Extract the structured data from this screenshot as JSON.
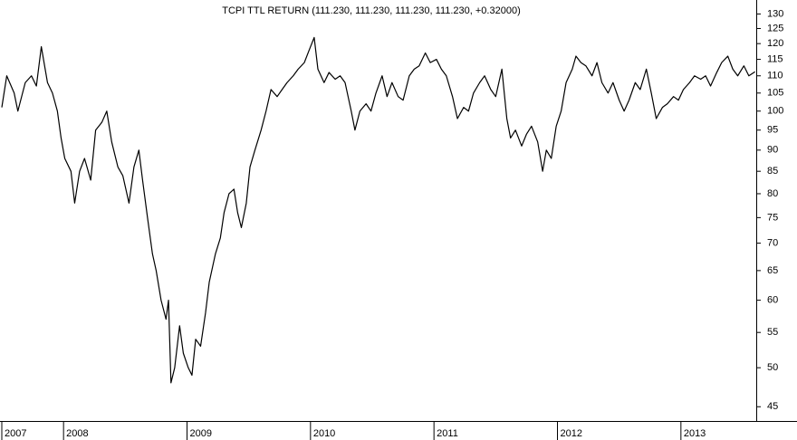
{
  "chart_data": {
    "type": "line",
    "title": "TCPI TTL RETURN (111.230, 111.230, 111.230, 111.230, +0.32000)",
    "x": [
      2007.5,
      2007.54,
      2007.6,
      2007.63,
      2007.69,
      2007.74,
      2007.78,
      2007.82,
      2007.87,
      2007.91,
      2007.95,
      2007.98,
      2008.01,
      2008.06,
      2008.09,
      2008.13,
      2008.17,
      2008.22,
      2008.26,
      2008.31,
      2008.35,
      2008.39,
      2008.44,
      2008.48,
      2008.53,
      2008.57,
      2008.61,
      2008.64,
      2008.68,
      2008.72,
      2008.75,
      2008.79,
      2008.83,
      2008.85,
      2008.87,
      2008.9,
      2008.94,
      2008.97,
      2009.01,
      2009.04,
      2009.07,
      2009.11,
      2009.15,
      2009.18,
      2009.23,
      2009.27,
      2009.3,
      2009.34,
      2009.38,
      2009.41,
      2009.44,
      2009.48,
      2009.51,
      2009.55,
      2009.6,
      2009.64,
      2009.68,
      2009.73,
      2009.77,
      2009.81,
      2009.86,
      2009.9,
      2009.95,
      2009.99,
      2010.03,
      2010.06,
      2010.11,
      2010.15,
      2010.2,
      2010.24,
      2010.28,
      2010.33,
      2010.36,
      2010.4,
      2010.45,
      2010.49,
      2010.53,
      2010.58,
      2010.62,
      2010.66,
      2010.71,
      2010.75,
      2010.8,
      2010.84,
      2010.88,
      2010.93,
      2010.97,
      2011.02,
      2011.06,
      2011.1,
      2011.15,
      2011.19,
      2011.24,
      2011.28,
      2011.32,
      2011.37,
      2011.41,
      2011.46,
      2011.5,
      2011.55,
      2011.59,
      2011.62,
      2011.66,
      2011.71,
      2011.75,
      2011.79,
      2011.84,
      2011.88,
      2011.91,
      2011.95,
      2011.99,
      2012.03,
      2012.07,
      2012.12,
      2012.15,
      2012.19,
      2012.23,
      2012.28,
      2012.32,
      2012.36,
      2012.41,
      2012.45,
      2012.5,
      2012.54,
      2012.58,
      2012.63,
      2012.67,
      2012.72,
      2012.76,
      2012.8,
      2012.85,
      2012.89,
      2012.94,
      2012.98,
      2013.02,
      2013.07,
      2013.11,
      2013.16,
      2013.2,
      2013.24,
      2013.29,
      2013.33,
      2013.38,
      2013.42,
      2013.46,
      2013.51,
      2013.55,
      2013.6
    ],
    "series": [
      {
        "color": "#000000",
        "values": [
          101,
          110,
          105,
          100,
          108,
          110,
          107,
          119,
          108,
          105,
          100,
          93,
          88,
          85,
          78,
          85,
          88,
          83,
          95,
          97,
          100,
          92,
          86,
          84,
          78,
          86,
          90,
          83,
          75,
          68,
          65,
          60,
          57,
          60,
          48,
          50,
          56,
          52,
          50,
          49,
          54,
          53,
          58,
          63,
          68,
          71,
          76,
          80,
          81,
          76,
          73,
          78,
          86,
          90,
          95,
          100,
          106,
          104,
          106,
          108,
          110,
          112,
          114,
          118,
          122,
          112,
          108,
          111,
          109,
          110,
          108,
          100,
          95,
          100,
          102,
          100,
          105,
          110,
          104,
          108,
          104,
          103,
          110,
          112,
          113,
          117,
          114,
          115,
          112,
          110,
          104,
          98,
          101,
          100,
          105,
          108,
          110,
          106,
          104,
          112,
          98,
          93,
          95,
          91,
          94,
          96,
          92,
          85,
          90,
          88,
          96,
          100,
          108,
          112,
          116,
          114,
          113,
          110,
          114,
          108,
          105,
          108,
          103,
          100,
          103,
          108,
          106,
          112,
          105,
          98,
          101,
          102,
          104,
          103,
          106,
          108,
          110,
          109,
          110,
          107,
          111,
          114,
          116,
          112,
          110,
          113,
          110,
          111.23
        ]
      }
    ],
    "xlim": [
      2007.5,
      2013.61
    ],
    "xticks": [
      {
        "value": 2007.5,
        "label": "2007"
      },
      2008,
      2009,
      2010,
      2011,
      2012,
      2013
    ],
    "ylim": [
      43.3,
      135
    ],
    "yticks": [
      45,
      50,
      55,
      60,
      65,
      70,
      75,
      80,
      85,
      90,
      95,
      100,
      105,
      110,
      115,
      120,
      125,
      130
    ],
    "log_scale": true,
    "grid": false
  }
}
